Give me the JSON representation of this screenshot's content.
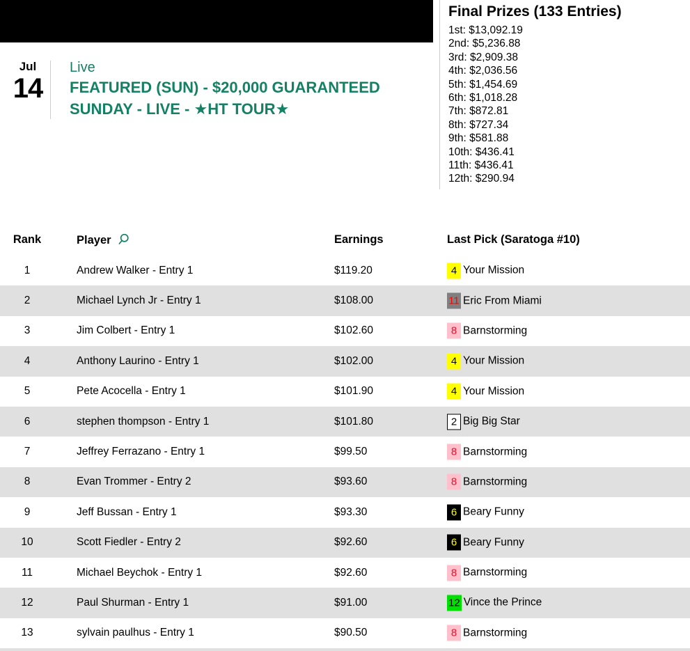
{
  "colors": {
    "accent_teal": "#148064",
    "row_stripe": "#e0e0e0",
    "banner_black": "#000000",
    "divider_gray": "#cccccc"
  },
  "event": {
    "month": "Jul",
    "day": "14",
    "status": "Live",
    "title_line1": "FEATURED (SUN) - $20,000 GUARANTEED",
    "title_line2": "SUNDAY - LIVE - ★HT TOUR★"
  },
  "prizes": {
    "title": "Final Prizes (133 Entries)",
    "items": [
      "1st: $13,092.19",
      "2nd: $5,236.88",
      "3rd: $2,909.38",
      "4th: $2,036.56",
      "5th: $1,454.69",
      "6th: $1,018.28",
      "7th: $872.81",
      "8th: $727.34",
      "9th: $581.88",
      "10th: $436.41",
      "11th: $436.41",
      "12th: $290.94"
    ]
  },
  "table": {
    "headers": {
      "rank": "Rank",
      "player": "Player",
      "earnings": "Earnings",
      "last_pick": "Last Pick (Saratoga #10)"
    },
    "search_icon": "search-icon",
    "rows": [
      {
        "rank": "1",
        "player": "Andrew Walker - Entry 1",
        "earnings": "$119.20",
        "pick": {
          "num": "4",
          "bg": "#ffff00",
          "fg": "#000000",
          "border": "none",
          "name": "Your Mission"
        }
      },
      {
        "rank": "2",
        "player": "Michael Lynch Jr - Entry 1",
        "earnings": "$108.00",
        "pick": {
          "num": "11",
          "bg": "#808080",
          "fg": "#ff0000",
          "border": "none",
          "name": "Eric From Miami"
        }
      },
      {
        "rank": "3",
        "player": "Jim Colbert - Entry 1",
        "earnings": "$102.60",
        "pick": {
          "num": "8",
          "bg": "#ffc0cb",
          "fg": "#e8112d",
          "border": "none",
          "name": "Barnstorming"
        }
      },
      {
        "rank": "4",
        "player": "Anthony Laurino - Entry 1",
        "earnings": "$102.00",
        "pick": {
          "num": "4",
          "bg": "#ffff00",
          "fg": "#000000",
          "border": "none",
          "name": "Your Mission"
        }
      },
      {
        "rank": "5",
        "player": "Pete Acocella - Entry 1",
        "earnings": "$101.90",
        "pick": {
          "num": "4",
          "bg": "#ffff00",
          "fg": "#000000",
          "border": "none",
          "name": "Your Mission"
        }
      },
      {
        "rank": "6",
        "player": "stephen thompson - Entry 1",
        "earnings": "$101.80",
        "pick": {
          "num": "2",
          "bg": "#ffffff",
          "fg": "#000000",
          "border": "1px solid #000000",
          "name": "Big Big Star"
        }
      },
      {
        "rank": "7",
        "player": "Jeffrey Ferrazano - Entry 1",
        "earnings": "$99.50",
        "pick": {
          "num": "8",
          "bg": "#ffc0cb",
          "fg": "#e8112d",
          "border": "none",
          "name": "Barnstorming"
        }
      },
      {
        "rank": "8",
        "player": "Evan Trommer - Entry 2",
        "earnings": "$93.60",
        "pick": {
          "num": "8",
          "bg": "#ffc0cb",
          "fg": "#e8112d",
          "border": "none",
          "name": "Barnstorming"
        }
      },
      {
        "rank": "9",
        "player": "Jeff Bussan - Entry 1",
        "earnings": "$93.30",
        "pick": {
          "num": "6",
          "bg": "#000000",
          "fg": "#ffff00",
          "border": "none",
          "name": "Beary Funny"
        }
      },
      {
        "rank": "10",
        "player": "Scott Fiedler - Entry 2",
        "earnings": "$92.60",
        "pick": {
          "num": "6",
          "bg": "#000000",
          "fg": "#ffff00",
          "border": "none",
          "name": "Beary Funny"
        }
      },
      {
        "rank": "11",
        "player": "Michael Beychok - Entry 1",
        "earnings": "$92.60",
        "pick": {
          "num": "8",
          "bg": "#ffc0cb",
          "fg": "#e8112d",
          "border": "none",
          "name": "Barnstorming"
        }
      },
      {
        "rank": "12",
        "player": "Paul Shurman - Entry 1",
        "earnings": "$91.00",
        "pick": {
          "num": "12",
          "bg": "#00e000",
          "fg": "#000000",
          "border": "none",
          "name": "Vince the Prince"
        }
      },
      {
        "rank": "13",
        "player": "sylvain paulhus - Entry 1",
        "earnings": "$90.50",
        "pick": {
          "num": "8",
          "bg": "#ffc0cb",
          "fg": "#e8112d",
          "border": "none",
          "name": "Barnstorming"
        }
      }
    ]
  }
}
